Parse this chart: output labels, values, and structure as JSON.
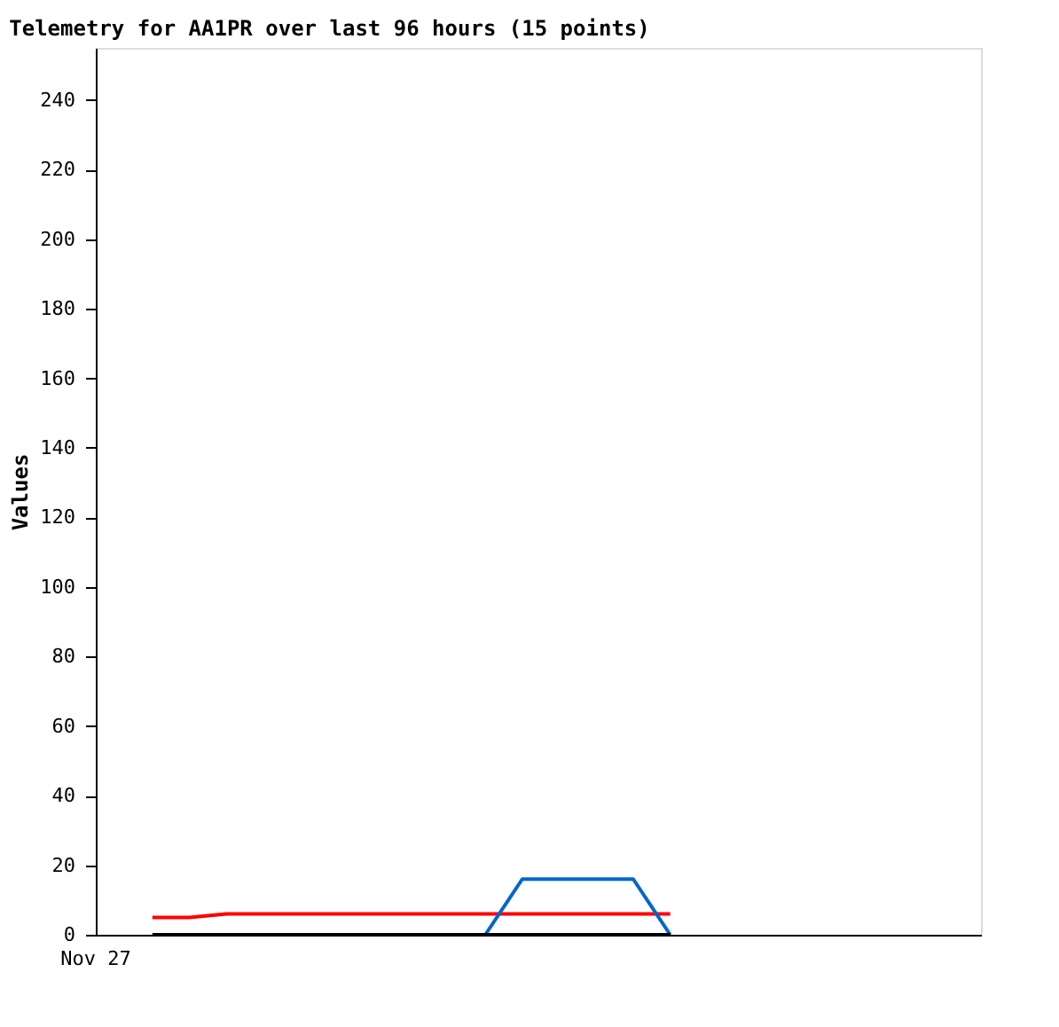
{
  "chart_data": {
    "type": "line",
    "title": "Telemetry for AA1PR over last 96 hours (15 points)",
    "ylabel": "Values",
    "categories": [
      null,
      null,
      null,
      null,
      null,
      null,
      null,
      null,
      null,
      null,
      null,
      null,
      null,
      null,
      null
    ],
    "ylim": [
      0,
      255
    ],
    "yticks": [
      0,
      20,
      40,
      60,
      80,
      100,
      120,
      140,
      160,
      180,
      200,
      220,
      240
    ],
    "tick_labels": "y",
    "annotations": [
      "Nov 27"
    ],
    "series": [
      {
        "color": "#ff0000",
        "values": [
          5,
          5,
          6,
          6,
          6,
          6,
          6,
          6,
          6,
          6,
          6,
          6,
          6,
          6,
          6
        ]
      },
      {
        "color": "#0066cc",
        "values": [
          null,
          null,
          null,
          null,
          null,
          null,
          null,
          null,
          null,
          0,
          16,
          16,
          16,
          16,
          0
        ]
      },
      {
        "color": "#000000",
        "values": [
          0,
          0,
          0,
          0,
          0,
          0,
          0,
          0,
          0,
          0,
          0,
          0,
          0,
          0,
          0
        ]
      }
    ],
    "grid": false,
    "marker": "none",
    "line_style": "solid"
  }
}
